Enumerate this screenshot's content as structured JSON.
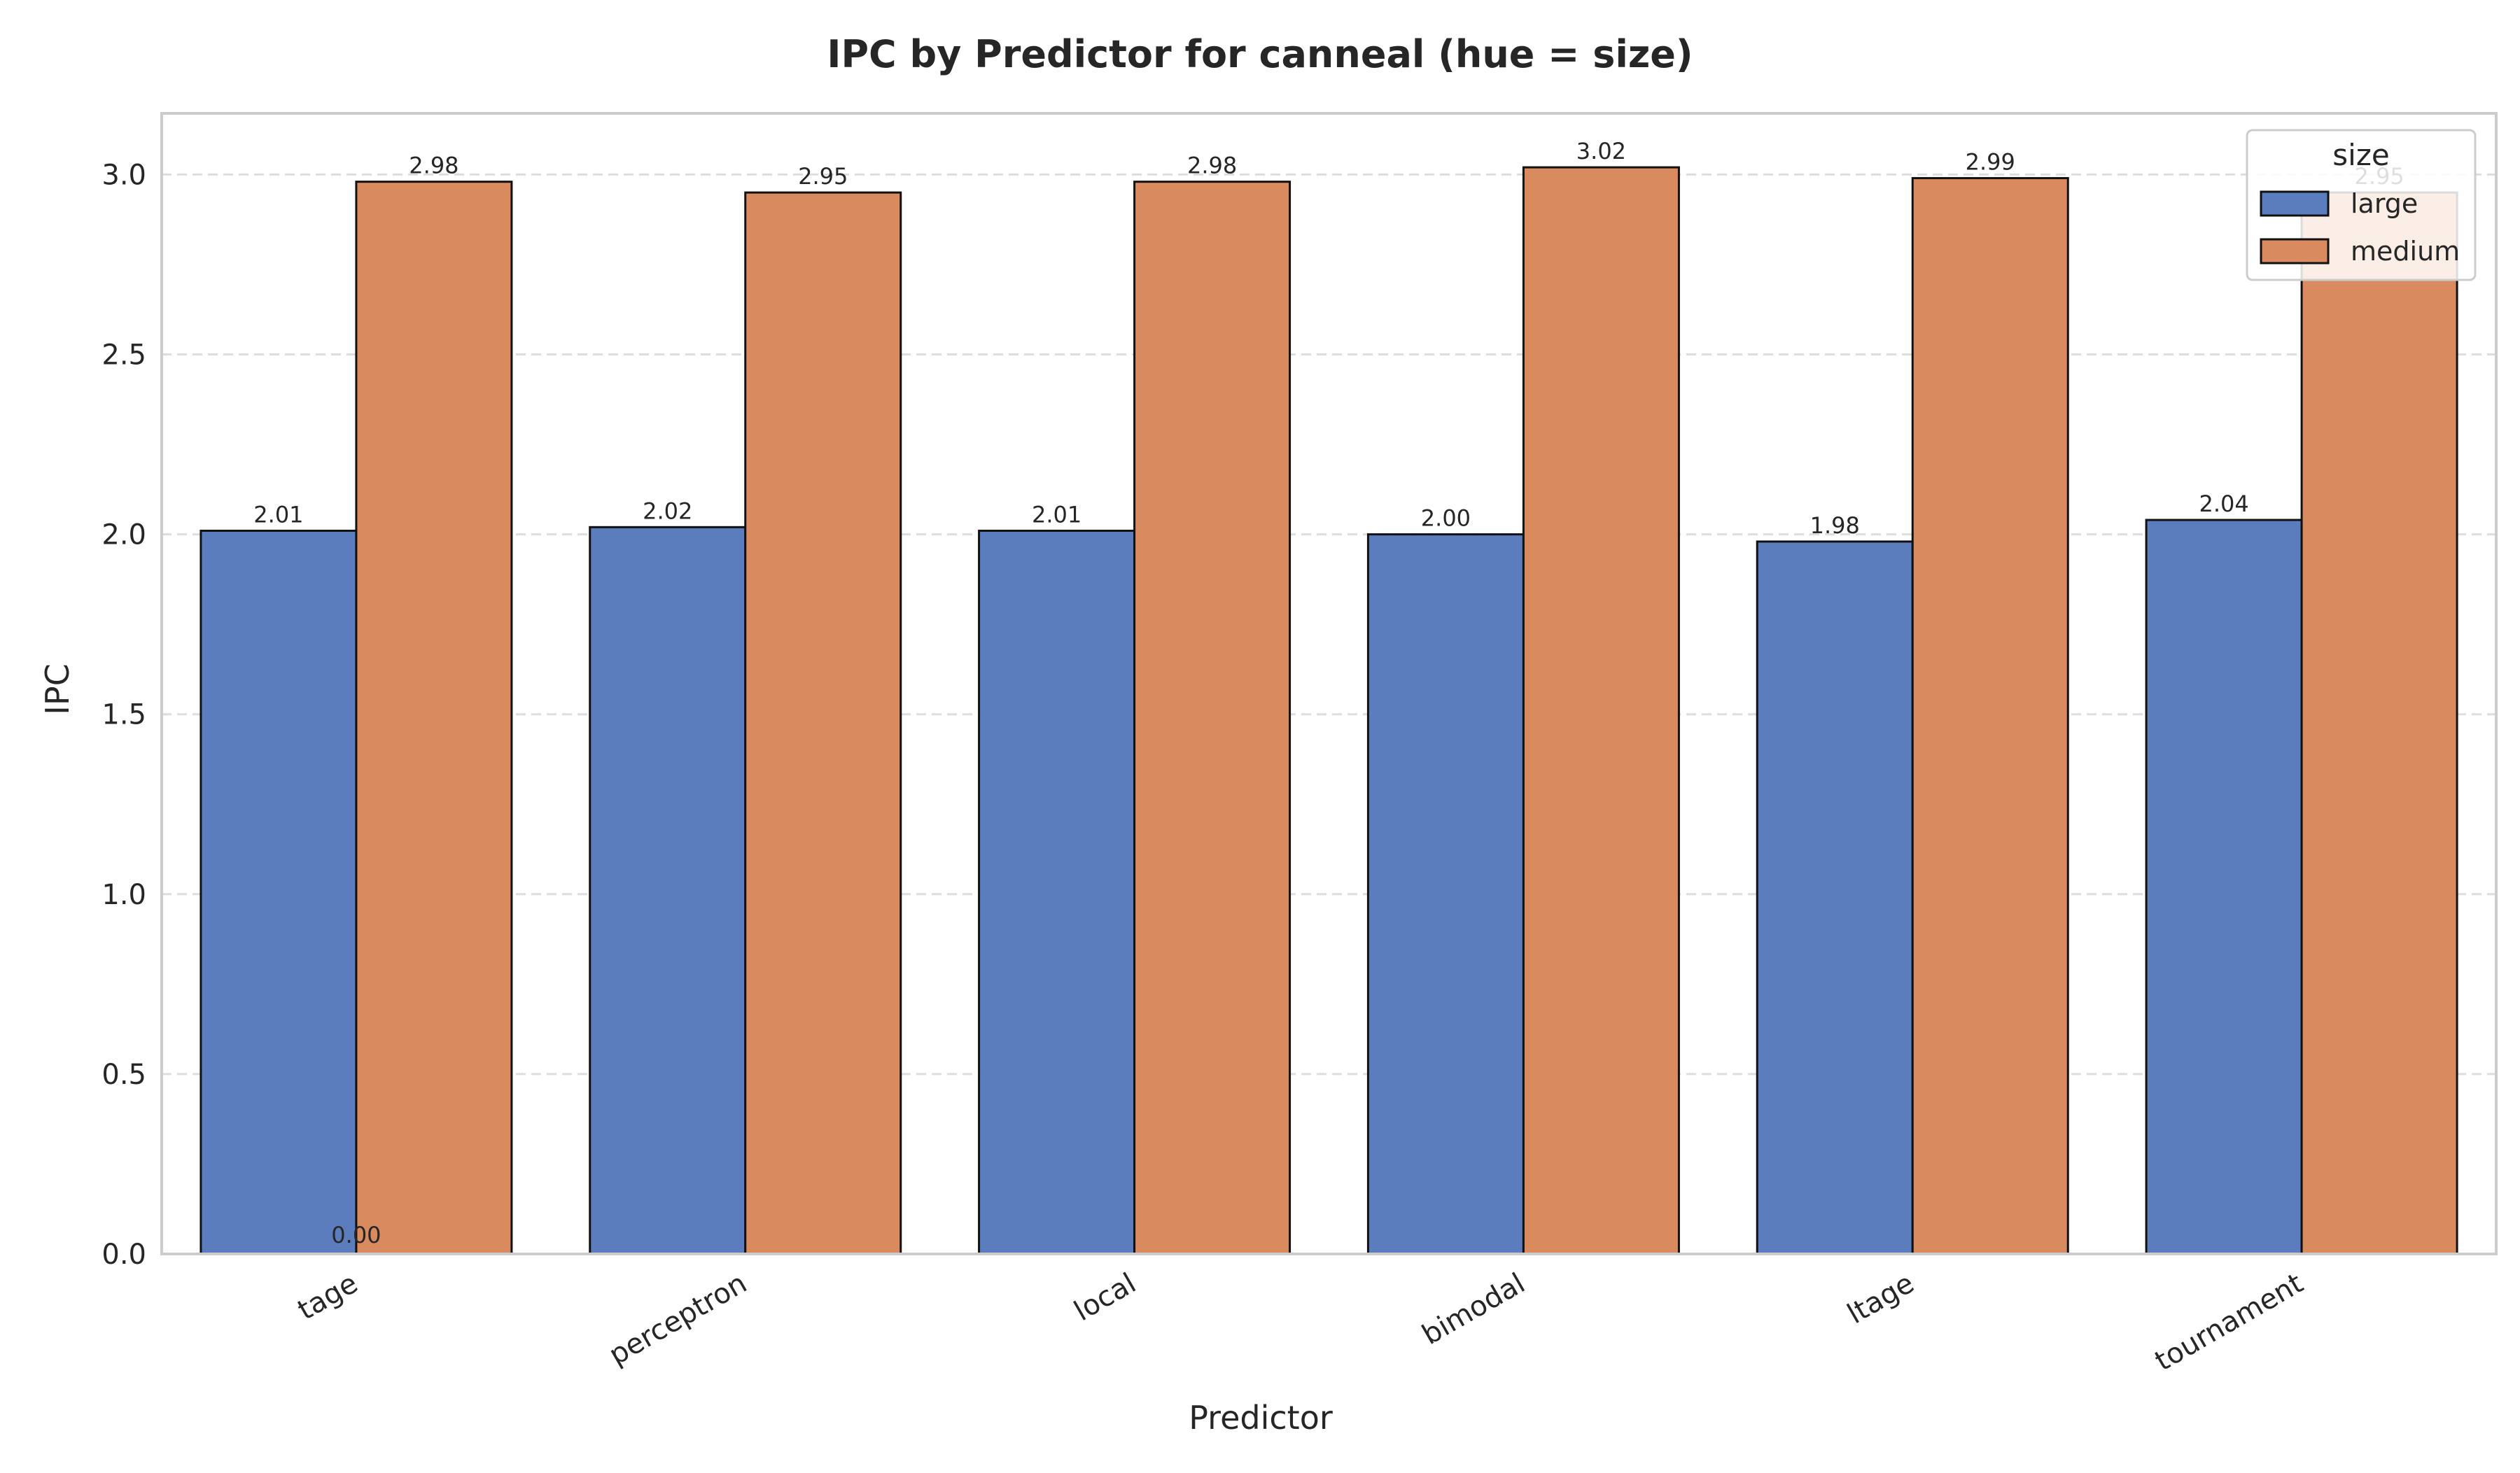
{
  "chart_data": {
    "type": "bar",
    "title": "IPC by Predictor for canneal (hue = size)",
    "xlabel": "Predictor",
    "ylabel": "IPC",
    "categories": [
      "tage",
      "perceptron",
      "local",
      "bimodal",
      "ltage",
      "tournament"
    ],
    "series": [
      {
        "name": "large",
        "values": [
          2.01,
          2.02,
          2.01,
          2.0,
          1.98,
          2.04
        ],
        "color": "#5b7dbd"
      },
      {
        "name": "medium",
        "values": [
          2.98,
          2.95,
          2.98,
          3.02,
          2.99,
          2.95
        ],
        "color": "#d98a5f"
      }
    ],
    "value_labels": [
      [
        "2.01",
        "2.02",
        "2.01",
        "2.00",
        "1.98",
        "2.04"
      ],
      [
        "2.98",
        "2.95",
        "2.98",
        "3.02",
        "2.99",
        "2.95"
      ]
    ],
    "extra_label": "0.00",
    "ylim": [
      0,
      3.17
    ],
    "yticks": [
      "0.0",
      "0.5",
      "1.0",
      "1.5",
      "2.0",
      "2.5",
      "3.0"
    ],
    "grid": true,
    "legend": {
      "title": "size",
      "placement": "top-right"
    }
  }
}
